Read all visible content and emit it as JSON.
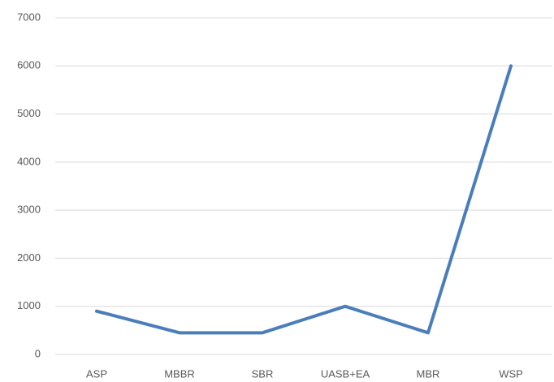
{
  "chart_data": {
    "type": "line",
    "categories": [
      "ASP",
      "MBBR",
      "SBR",
      "UASB+EA",
      "MBR",
      "WSP"
    ],
    "series": [
      {
        "color": "#4a7ebb",
        "values": [
          900,
          450,
          450,
          1000,
          450,
          6000
        ]
      }
    ],
    "ylim": [
      0,
      7000
    ],
    "yticks": [
      0,
      1000,
      2000,
      3000,
      4000,
      5000,
      6000,
      7000
    ],
    "grid": true
  }
}
